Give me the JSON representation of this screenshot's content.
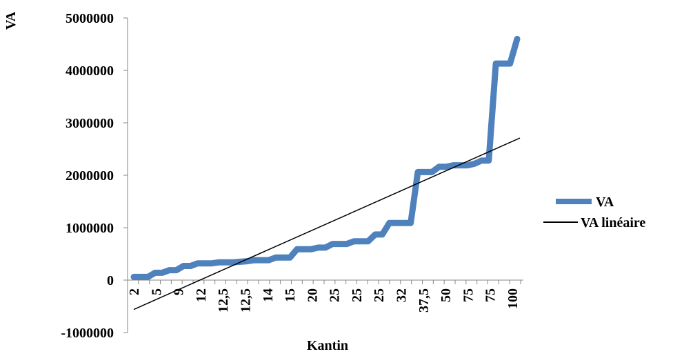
{
  "chart_data": {
    "type": "line",
    "xlabel": "Kantin",
    "ylabel": "VA",
    "ylim": [
      -1000000,
      5000000
    ],
    "yticks": [
      -1000000,
      0,
      1000000,
      2000000,
      3000000,
      4000000,
      5000000
    ],
    "ytick_labels": [
      "-1000000",
      "0",
      "1000000",
      "2000000",
      "3000000",
      "4000000",
      "5000000"
    ],
    "x_tick_labels": [
      "2",
      "5",
      "9",
      "12",
      "12,5",
      "12,5",
      "14",
      "15",
      "20",
      "25",
      "25",
      "25",
      "32",
      "37,5",
      "50",
      "75",
      "75",
      "100"
    ],
    "legend_position": "right",
    "grid": false,
    "colors": {
      "series": "#4F81BD",
      "trend": "#000000"
    },
    "series": [
      {
        "name": "VA",
        "values": [
          60000,
          60000,
          60000,
          140000,
          140000,
          190000,
          190000,
          270000,
          270000,
          320000,
          320000,
          320000,
          340000,
          340000,
          340000,
          350000,
          360000,
          380000,
          380000,
          380000,
          430000,
          430000,
          430000,
          590000,
          590000,
          590000,
          620000,
          620000,
          690000,
          690000,
          690000,
          740000,
          740000,
          740000,
          870000,
          870000,
          1090000,
          1090000,
          1090000,
          1090000,
          2060000,
          2060000,
          2060000,
          2160000,
          2160000,
          2190000,
          2190000,
          2190000,
          2220000,
          2280000,
          2280000,
          4130000,
          4130000,
          4130000,
          4600000
        ]
      },
      {
        "name": "VA linéaire",
        "trendline": true,
        "start": -560000,
        "end": 2710000
      }
    ]
  }
}
